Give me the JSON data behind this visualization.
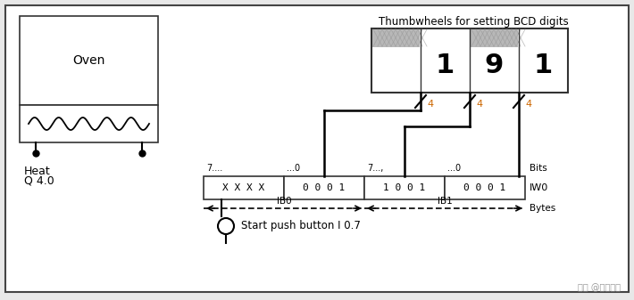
{
  "title": "Thumbwheels for setting BCD digits",
  "bg_color": "#e8e8e8",
  "diagram_bg": "#ffffff",
  "border_color": "#444444",
  "oven_label": "Oven",
  "heat_label": "Heat",
  "heat_label2": "Q 4.0",
  "bits_label": "Bits",
  "iw0_label": "IW0",
  "bytes_label": "Bytes",
  "ib0_label": "IB0",
  "ib1_label": "IB1",
  "start_button_label": "Start push button I 0.7",
  "register_cells": [
    "X X X X",
    "0 0 0 1",
    "1 0 0 1",
    "0 0 0 1"
  ],
  "bits_labels_top": [
    "7....",
    "...0",
    "7...,",
    "...0"
  ],
  "slash_labels": [
    "4",
    "4",
    "4"
  ],
  "bcd_digits": [
    "1",
    "9",
    "1"
  ],
  "watermark": "头条 @荣久科技"
}
